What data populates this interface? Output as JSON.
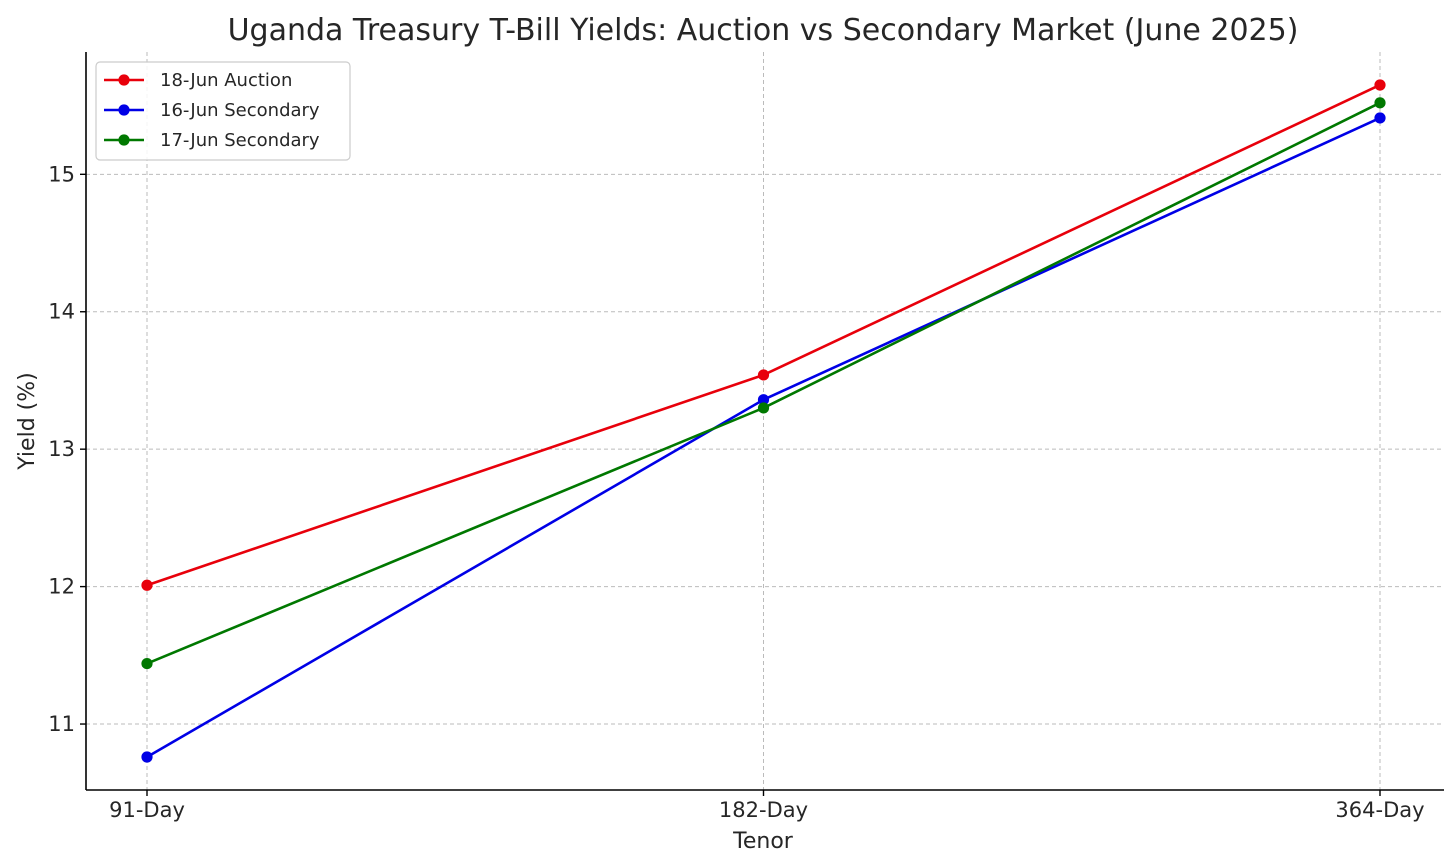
{
  "chart_data": {
    "type": "line",
    "title": "Uganda Treasury T-Bill Yields: Auction vs Secondary Market (June 2025)",
    "xlabel": "Tenor",
    "ylabel": "Yield (%)",
    "categories": [
      "91-Day",
      "182-Day",
      "364-Day"
    ],
    "ylim": [
      10.52,
      15.89
    ],
    "yticks": [
      11,
      12,
      13,
      14,
      15
    ],
    "grid": true,
    "legend_position": "top-left",
    "series": [
      {
        "name": "18-Jun Auction",
        "color": "#e8000b",
        "values": [
          12.01,
          13.54,
          15.65
        ]
      },
      {
        "name": "16-Jun Secondary",
        "color": "#0000e6",
        "values": [
          10.76,
          13.36,
          15.41
        ]
      },
      {
        "name": "17-Jun Secondary",
        "color": "#007800",
        "values": [
          11.44,
          13.3,
          15.52
        ]
      }
    ]
  }
}
